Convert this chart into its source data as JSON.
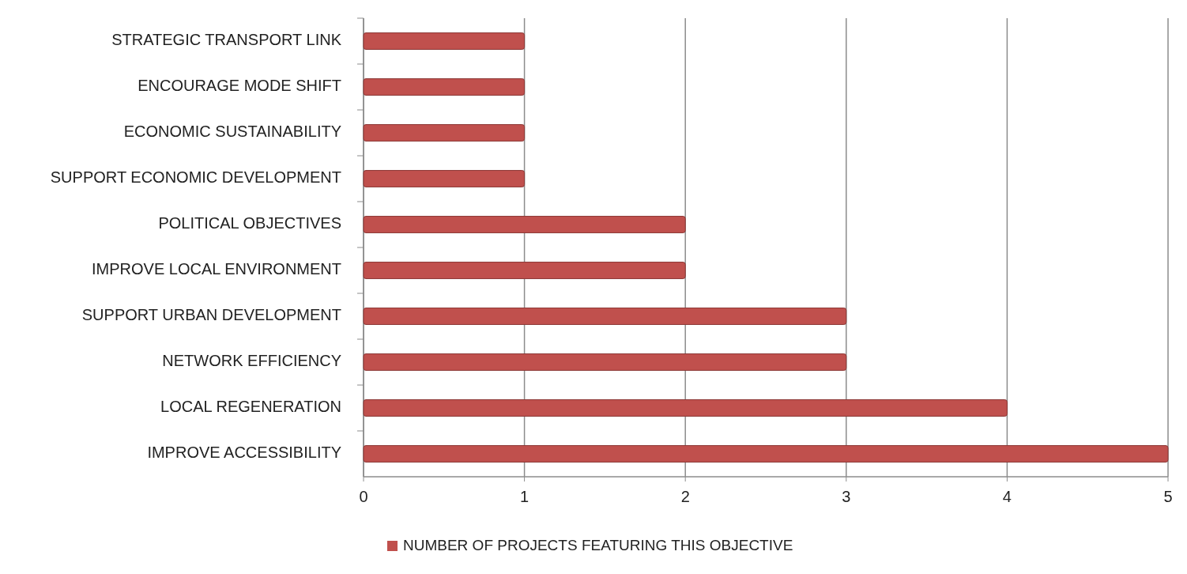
{
  "chart_data": {
    "type": "bar",
    "orientation": "horizontal",
    "categories": [
      "STRATEGIC TRANSPORT LINK",
      "ENCOURAGE MODE SHIFT",
      "ECONOMIC SUSTAINABILITY",
      "SUPPORT ECONOMIC DEVELOPMENT",
      "POLITICAL OBJECTIVES",
      "IMPROVE LOCAL ENVIRONMENT",
      "SUPPORT URBAN DEVELOPMENT",
      "NETWORK EFFICIENCY",
      "LOCAL REGENERATION",
      "IMPROVE ACCESSIBILITY"
    ],
    "series": [
      {
        "name": "NUMBER OF PROJECTS FEATURING THIS OBJECTIVE",
        "color": "#c0504d",
        "values": [
          1,
          1,
          1,
          1,
          2,
          2,
          3,
          3,
          4,
          5
        ]
      }
    ],
    "xlim": [
      0,
      5
    ],
    "xticks": [
      0,
      1,
      2,
      3,
      4,
      5
    ],
    "grid": "x",
    "legend": "bottom"
  }
}
